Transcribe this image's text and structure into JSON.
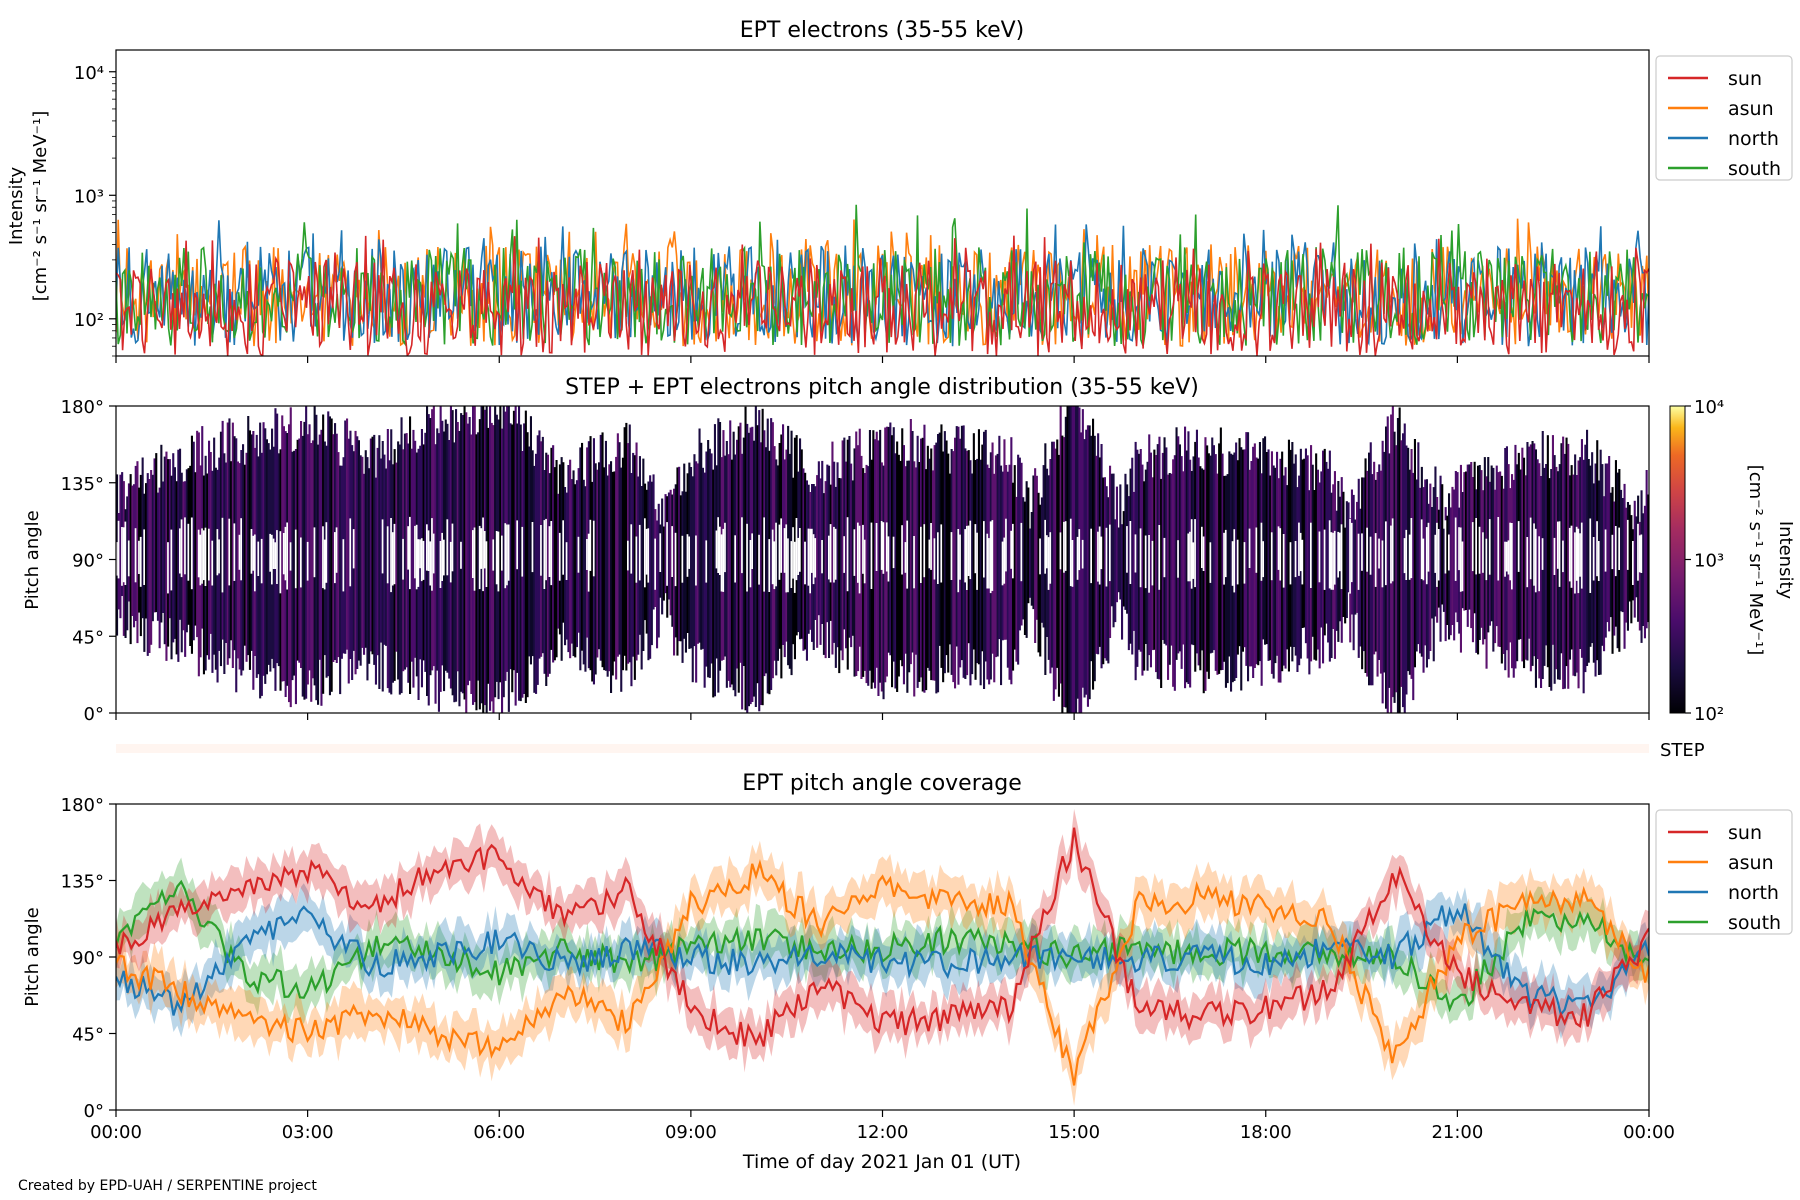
{
  "chart_data": [
    {
      "type": "line",
      "title": "EPT electrons (35-55 keV)",
      "ylabel_lines": [
        "Intensity",
        "[cm⁻² s⁻¹ sr⁻¹ MeV⁻¹]"
      ],
      "yscale": "log",
      "ylim": [
        50,
        15000
      ],
      "ytick_labels": [
        "10²",
        "10³",
        "10⁴"
      ],
      "legend": "upper-right-outside",
      "series": [
        {
          "name": "sun",
          "color": "#d62728",
          "typical_range": [
            50,
            300
          ],
          "peak": 480
        },
        {
          "name": "asun",
          "color": "#ff7f0e",
          "typical_range": [
            60,
            400
          ],
          "peak": 650
        },
        {
          "name": "north",
          "color": "#1f77b4",
          "typical_range": [
            60,
            380
          ],
          "peak": 640
        },
        {
          "name": "south",
          "color": "#2ca02c",
          "typical_range": [
            60,
            380
          ],
          "peak": 850
        }
      ],
      "x_hours": [
        0,
        24
      ]
    },
    {
      "type": "heatmap",
      "title": "STEP + EPT electrons pitch angle distribution (35-55 keV)",
      "ylabel": "Pitch angle",
      "ylim": [
        0,
        180
      ],
      "ytick_labels": [
        "0°",
        "45°",
        "90°",
        "135°",
        "180°"
      ],
      "colormap": "inferno",
      "color_scale": "log",
      "color_range": [
        100,
        10000
      ],
      "colorbar_label": "Intensity [cm⁻² s⁻¹ sr⁻¹ MeV⁻¹]",
      "colorbar_tick_labels": [
        "10²",
        "10³",
        "10⁴"
      ],
      "x_hours": [
        0,
        24
      ]
    },
    {
      "type": "bar",
      "label": "STEP",
      "color": "#fff5f0"
    },
    {
      "type": "line",
      "title": "EPT pitch angle coverage",
      "ylabel": "Pitch angle",
      "xlabel": "Time of day 2021 Jan 01 (UT)",
      "ylim": [
        0,
        180
      ],
      "ytick_labels": [
        "0°",
        "45°",
        "90°",
        "135°",
        "180°"
      ],
      "xtick_labels": [
        "00:00",
        "03:00",
        "06:00",
        "09:00",
        "12:00",
        "15:00",
        "18:00",
        "21:00",
        "00:00"
      ],
      "legend": "upper-right-outside",
      "series": [
        {
          "name": "sun",
          "color": "#d62728",
          "x": [
            0,
            1,
            2,
            3,
            4,
            5,
            6,
            7,
            8,
            9,
            10,
            11,
            12,
            13,
            14,
            15,
            16,
            17,
            18,
            19,
            20,
            21,
            22,
            23,
            24
          ],
          "y": [
            95,
            120,
            130,
            140,
            120,
            140,
            150,
            110,
            130,
            60,
            40,
            75,
            50,
            55,
            60,
            160,
            60,
            55,
            60,
            70,
            140,
            80,
            60,
            55,
            100
          ]
        },
        {
          "name": "asun",
          "color": "#ff7f0e",
          "x": [
            0,
            1,
            2,
            3,
            4,
            5,
            6,
            7,
            8,
            9,
            10,
            11,
            12,
            13,
            14,
            15,
            16,
            17,
            18,
            19,
            20,
            21,
            22,
            23,
            24
          ],
          "y": [
            85,
            70,
            55,
            45,
            60,
            45,
            35,
            70,
            50,
            120,
            140,
            110,
            130,
            125,
            120,
            20,
            120,
            125,
            120,
            110,
            30,
            100,
            120,
            125,
            80
          ]
        },
        {
          "name": "north",
          "color": "#1f77b4",
          "x": [
            0,
            1,
            2,
            3,
            4,
            5,
            6,
            7,
            8,
            9,
            10,
            11,
            12,
            13,
            14,
            15,
            16,
            17,
            18,
            19,
            20,
            21,
            22,
            23,
            24
          ],
          "y": [
            80,
            60,
            100,
            115,
            85,
            90,
            100,
            85,
            95,
            90,
            85,
            90,
            88,
            85,
            90,
            92,
            88,
            90,
            85,
            95,
            90,
            120,
            70,
            60,
            95
          ]
        },
        {
          "name": "south",
          "color": "#2ca02c",
          "x": [
            0,
            1,
            2,
            3,
            4,
            5,
            6,
            7,
            8,
            9,
            10,
            11,
            12,
            13,
            14,
            15,
            16,
            17,
            18,
            19,
            20,
            21,
            22,
            23,
            24
          ],
          "y": [
            100,
            130,
            80,
            70,
            95,
            95,
            80,
            95,
            85,
            95,
            100,
            95,
            95,
            100,
            98,
            90,
            95,
            92,
            95,
            90,
            92,
            60,
            110,
            115,
            85
          ]
        }
      ]
    }
  ],
  "footer": "Created by EPD-UAH / SERPENTINE project"
}
